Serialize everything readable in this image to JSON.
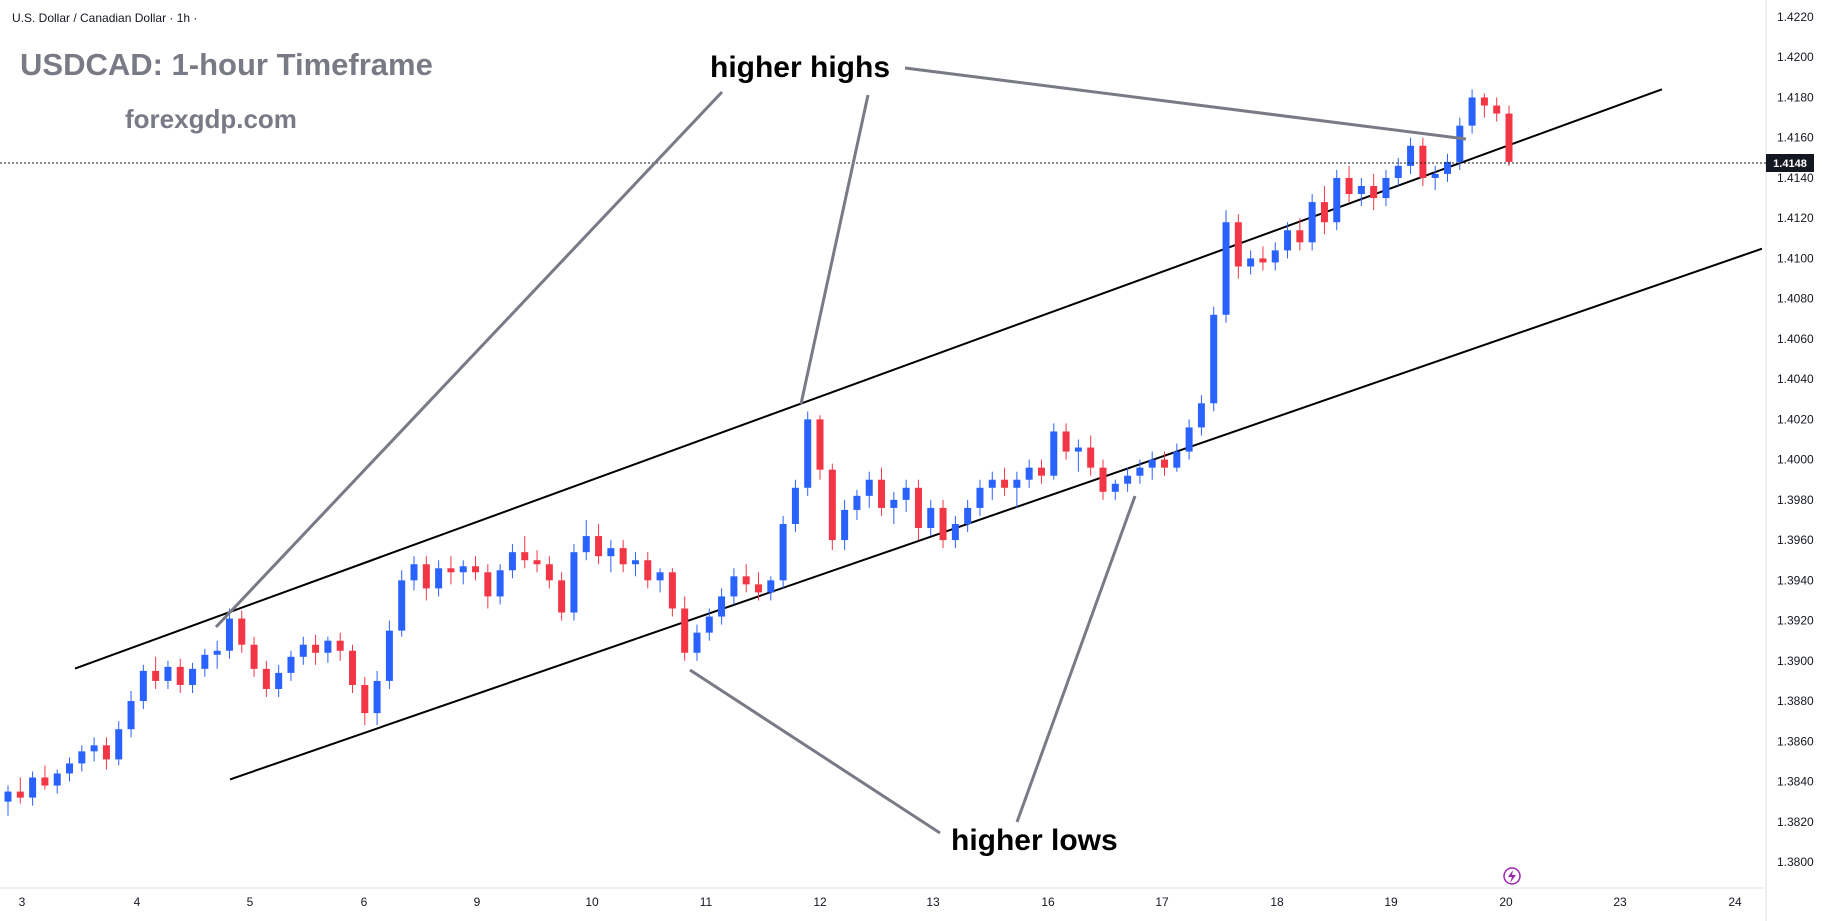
{
  "header": {
    "symbol_label": "U.S. Dollar / Canadian Dollar · 1h ·"
  },
  "overlay": {
    "title": "USDCAD: 1-hour Timeframe",
    "website": "forexgdp.com"
  },
  "annotations": {
    "higher_highs": "higher highs",
    "higher_lows": "higher lows"
  },
  "colors": {
    "up": "#2962ff",
    "down": "#f23645",
    "line": "#000000",
    "pointer": "#787b86",
    "price_badge": "#131722",
    "lightning": "#9c27b0"
  },
  "icons": {
    "lightning": "lightning-icon"
  },
  "chart_data": {
    "type": "candlestick",
    "title": "USDCAD: 1-hour Timeframe",
    "timeframe": "1h",
    "ylim": [
      1.378,
      1.4225
    ],
    "y_ticks": [
      "1.3800",
      "1.3820",
      "1.3840",
      "1.3860",
      "1.3880",
      "1.3900",
      "1.3920",
      "1.3940",
      "1.3960",
      "1.3980",
      "1.4000",
      "1.4020",
      "1.4040",
      "1.4060",
      "1.4080",
      "1.4100",
      "1.4120",
      "1.4140",
      "1.4160",
      "1.4180",
      "1.4200",
      "1.4220"
    ],
    "x_ticks": [
      "3",
      "4",
      "5",
      "6",
      "9",
      "10",
      "11",
      "12",
      "13",
      "16",
      "17",
      "18",
      "19",
      "20",
      "23",
      "24"
    ],
    "current_price": "1.4148",
    "ohlc": [
      [
        1.383,
        1.3838,
        1.3823,
        1.3835
      ],
      [
        1.3835,
        1.3842,
        1.3829,
        1.3832
      ],
      [
        1.3832,
        1.3845,
        1.3828,
        1.3842
      ],
      [
        1.3842,
        1.3848,
        1.3836,
        1.3838
      ],
      [
        1.3838,
        1.3846,
        1.3834,
        1.3844
      ],
      [
        1.3844,
        1.3852,
        1.384,
        1.3849
      ],
      [
        1.3849,
        1.3858,
        1.3845,
        1.3855
      ],
      [
        1.3855,
        1.3862,
        1.385,
        1.3858
      ],
      [
        1.3858,
        1.3862,
        1.3846,
        1.3851
      ],
      [
        1.3851,
        1.387,
        1.3848,
        1.3866
      ],
      [
        1.3866,
        1.3885,
        1.3862,
        1.388
      ],
      [
        1.388,
        1.3898,
        1.3876,
        1.3895
      ],
      [
        1.3895,
        1.3902,
        1.3886,
        1.389
      ],
      [
        1.389,
        1.39,
        1.3886,
        1.3897
      ],
      [
        1.3897,
        1.3901,
        1.3884,
        1.3888
      ],
      [
        1.3888,
        1.3899,
        1.3884,
        1.3896
      ],
      [
        1.3896,
        1.3906,
        1.3892,
        1.3903
      ],
      [
        1.3903,
        1.391,
        1.3896,
        1.3905
      ],
      [
        1.3905,
        1.3926,
        1.3901,
        1.3921
      ],
      [
        1.3921,
        1.3925,
        1.3904,
        1.3908
      ],
      [
        1.3908,
        1.3912,
        1.3892,
        1.3896
      ],
      [
        1.3896,
        1.39,
        1.3882,
        1.3886
      ],
      [
        1.3886,
        1.3898,
        1.3882,
        1.3894
      ],
      [
        1.3894,
        1.3905,
        1.389,
        1.3902
      ],
      [
        1.3902,
        1.3912,
        1.3898,
        1.3908
      ],
      [
        1.3908,
        1.3913,
        1.3898,
        1.3904
      ],
      [
        1.3904,
        1.3912,
        1.3899,
        1.391
      ],
      [
        1.391,
        1.3914,
        1.39,
        1.3905
      ],
      [
        1.3905,
        1.3908,
        1.3884,
        1.3888
      ],
      [
        1.3888,
        1.3892,
        1.3868,
        1.3874
      ],
      [
        1.3874,
        1.3895,
        1.3868,
        1.389
      ],
      [
        1.389,
        1.392,
        1.3886,
        1.3915
      ],
      [
        1.3915,
        1.3945,
        1.3912,
        1.394
      ],
      [
        1.394,
        1.3952,
        1.3935,
        1.3948
      ],
      [
        1.3948,
        1.3952,
        1.393,
        1.3936
      ],
      [
        1.3936,
        1.395,
        1.3932,
        1.3946
      ],
      [
        1.3946,
        1.3952,
        1.3938,
        1.3944
      ],
      [
        1.3944,
        1.395,
        1.3938,
        1.3947
      ],
      [
        1.3947,
        1.3952,
        1.394,
        1.3944
      ],
      [
        1.3944,
        1.3948,
        1.3926,
        1.3932
      ],
      [
        1.3932,
        1.3948,
        1.3928,
        1.3945
      ],
      [
        1.3945,
        1.3958,
        1.3941,
        1.3954
      ],
      [
        1.3954,
        1.3962,
        1.3946,
        1.395
      ],
      [
        1.395,
        1.3955,
        1.3944,
        1.3948
      ],
      [
        1.3948,
        1.3952,
        1.3936,
        1.394
      ],
      [
        1.394,
        1.3944,
        1.392,
        1.3924
      ],
      [
        1.3924,
        1.3958,
        1.392,
        1.3954
      ],
      [
        1.3954,
        1.397,
        1.395,
        1.3962
      ],
      [
        1.3962,
        1.3968,
        1.3948,
        1.3952
      ],
      [
        1.3952,
        1.396,
        1.3944,
        1.3956
      ],
      [
        1.3956,
        1.396,
        1.3944,
        1.3948
      ],
      [
        1.3948,
        1.3954,
        1.3942,
        1.395
      ],
      [
        1.395,
        1.3954,
        1.3936,
        1.394
      ],
      [
        1.394,
        1.3946,
        1.3934,
        1.3944
      ],
      [
        1.3944,
        1.3946,
        1.3922,
        1.3926
      ],
      [
        1.3926,
        1.3932,
        1.39,
        1.3904
      ],
      [
        1.3904,
        1.3918,
        1.39,
        1.3914
      ],
      [
        1.3914,
        1.3926,
        1.391,
        1.3922
      ],
      [
        1.3922,
        1.3936,
        1.3918,
        1.3932
      ],
      [
        1.3932,
        1.3946,
        1.3928,
        1.3942
      ],
      [
        1.3942,
        1.3948,
        1.3934,
        1.3938
      ],
      [
        1.3938,
        1.3944,
        1.393,
        1.3934
      ],
      [
        1.3934,
        1.3942,
        1.393,
        1.394
      ],
      [
        1.394,
        1.3972,
        1.3936,
        1.3968
      ],
      [
        1.3968,
        1.399,
        1.3964,
        1.3986
      ],
      [
        1.3986,
        1.4024,
        1.3982,
        1.402
      ],
      [
        1.402,
        1.4022,
        1.399,
        1.3995
      ],
      [
        1.3995,
        1.3998,
        1.3955,
        1.396
      ],
      [
        1.396,
        1.398,
        1.3955,
        1.3975
      ],
      [
        1.3975,
        1.3985,
        1.397,
        1.3982
      ],
      [
        1.3982,
        1.3994,
        1.3976,
        1.399
      ],
      [
        1.399,
        1.3996,
        1.3972,
        1.3976
      ],
      [
        1.3976,
        1.3984,
        1.3968,
        1.398
      ],
      [
        1.398,
        1.399,
        1.3974,
        1.3986
      ],
      [
        1.3986,
        1.399,
        1.396,
        1.3966
      ],
      [
        1.3966,
        1.398,
        1.3962,
        1.3976
      ],
      [
        1.3976,
        1.398,
        1.3956,
        1.396
      ],
      [
        1.396,
        1.3972,
        1.3956,
        1.3968
      ],
      [
        1.3968,
        1.398,
        1.3964,
        1.3976
      ],
      [
        1.3976,
        1.399,
        1.3972,
        1.3986
      ],
      [
        1.3986,
        1.3994,
        1.398,
        1.399
      ],
      [
        1.399,
        1.3996,
        1.3982,
        1.3986
      ],
      [
        1.3986,
        1.3994,
        1.3976,
        1.399
      ],
      [
        1.399,
        1.4,
        1.3986,
        1.3996
      ],
      [
        1.3996,
        1.4,
        1.3988,
        1.3992
      ],
      [
        1.3992,
        1.4018,
        1.399,
        1.4014
      ],
      [
        1.4014,
        1.4018,
        1.4,
        1.4004
      ],
      [
        1.4004,
        1.401,
        1.3994,
        1.4006
      ],
      [
        1.4006,
        1.4012,
        1.3992,
        1.3996
      ],
      [
        1.3996,
        1.4,
        1.398,
        1.3984
      ],
      [
        1.3984,
        1.399,
        1.398,
        1.3988
      ],
      [
        1.3988,
        1.3996,
        1.3984,
        1.3992
      ],
      [
        1.3992,
        1.4,
        1.3988,
        1.3996
      ],
      [
        1.3996,
        1.4004,
        1.399,
        1.4
      ],
      [
        1.4,
        1.4004,
        1.3992,
        1.3996
      ],
      [
        1.3996,
        1.4008,
        1.3994,
        1.4004
      ],
      [
        1.4004,
        1.402,
        1.4,
        1.4016
      ],
      [
        1.4016,
        1.4032,
        1.4012,
        1.4028
      ],
      [
        1.4028,
        1.4076,
        1.4024,
        1.4072
      ],
      [
        1.4072,
        1.4124,
        1.4068,
        1.4118
      ],
      [
        1.4118,
        1.4122,
        1.409,
        1.4096
      ],
      [
        1.4096,
        1.4104,
        1.4092,
        1.41
      ],
      [
        1.41,
        1.4106,
        1.4094,
        1.4098
      ],
      [
        1.4098,
        1.4108,
        1.4094,
        1.4104
      ],
      [
        1.4104,
        1.4118,
        1.41,
        1.4114
      ],
      [
        1.4114,
        1.412,
        1.4104,
        1.4108
      ],
      [
        1.4108,
        1.4132,
        1.4104,
        1.4128
      ],
      [
        1.4128,
        1.4136,
        1.4112,
        1.4118
      ],
      [
        1.4118,
        1.4144,
        1.4114,
        1.414
      ],
      [
        1.414,
        1.4146,
        1.4128,
        1.4132
      ],
      [
        1.4132,
        1.414,
        1.4126,
        1.4136
      ],
      [
        1.4136,
        1.4142,
        1.4124,
        1.413
      ],
      [
        1.413,
        1.4144,
        1.4126,
        1.414
      ],
      [
        1.414,
        1.415,
        1.4136,
        1.4146
      ],
      [
        1.4146,
        1.416,
        1.4142,
        1.4156
      ],
      [
        1.4156,
        1.416,
        1.4136,
        1.414
      ],
      [
        1.414,
        1.4146,
        1.4134,
        1.4142
      ],
      [
        1.4142,
        1.4152,
        1.4138,
        1.4148
      ],
      [
        1.4148,
        1.417,
        1.4144,
        1.4166
      ],
      [
        1.4166,
        1.4184,
        1.4162,
        1.418
      ],
      [
        1.418,
        1.4182,
        1.417,
        1.4176
      ],
      [
        1.4176,
        1.418,
        1.4168,
        1.4172
      ],
      [
        1.4172,
        1.4176,
        1.4146,
        1.4148
      ]
    ],
    "channel_lines": [
      {
        "name": "upper-channel",
        "from": [
          0,
          1.3884
        ],
        "to": [
          138,
          1.4192
        ]
      },
      {
        "name": "lower-channel",
        "from": [
          10,
          1.3824
        ],
        "to": [
          145,
          1.411
        ]
      }
    ]
  }
}
